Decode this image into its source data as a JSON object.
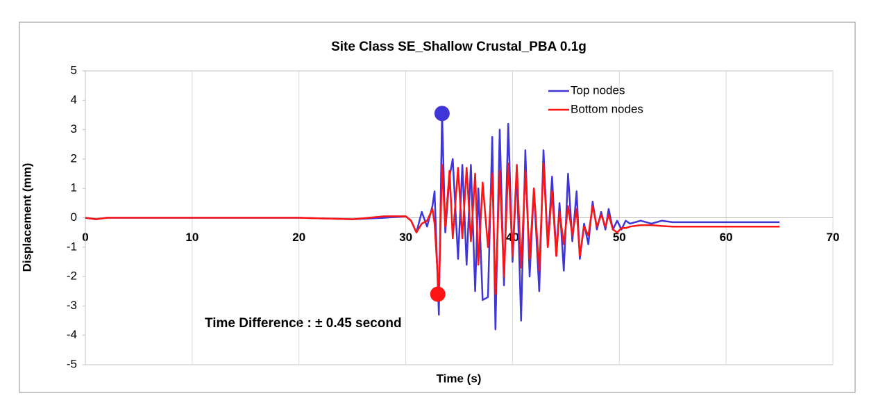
{
  "chart_data": {
    "type": "line",
    "title": "Site Class SE_Shallow Crustal_PBA 0.1g",
    "xlabel": "Time (s)",
    "ylabel": "Displacement (mm)",
    "annotation": "Time Difference : ± 0.45 second",
    "x": [
      0,
      1,
      2,
      5,
      10,
      15,
      20,
      25,
      28,
      30,
      30.5,
      31,
      31.5,
      32,
      32.5,
      32.7,
      33.1,
      33.4,
      33.7,
      34.1,
      34.4,
      34.9,
      35.3,
      35.7,
      36.1,
      36.5,
      36.8,
      37.2,
      37.7,
      38.1,
      38.4,
      38.8,
      39.2,
      39.6,
      40.0,
      40.4,
      40.8,
      41.2,
      41.6,
      42.0,
      42.5,
      42.9,
      43.3,
      43.7,
      44.1,
      44.4,
      44.8,
      45.2,
      45.6,
      46.0,
      46.3,
      46.7,
      47.1,
      47.5,
      47.9,
      48.3,
      48.7,
      49.0,
      49.4,
      49.8,
      50.2,
      50.6,
      51,
      52,
      53,
      54,
      55,
      57,
      60,
      65
    ],
    "series": [
      {
        "name": "Top nodes",
        "color": "#3f36d8",
        "values": [
          0,
          -0.05,
          0,
          0,
          0,
          0,
          0,
          -0.05,
          0,
          0.05,
          -0.1,
          -0.5,
          0.2,
          -0.3,
          0.4,
          0.9,
          -3.3,
          3.55,
          -0.5,
          1.4,
          2.0,
          -1.4,
          1.8,
          -1.6,
          1.8,
          -2.5,
          1.0,
          -2.8,
          -2.7,
          2.75,
          -3.8,
          3.0,
          -2.3,
          3.2,
          -1.5,
          1.6,
          -3.5,
          2.3,
          -2.0,
          1.0,
          -2.5,
          2.3,
          -1.0,
          1.4,
          -1.3,
          0.5,
          -1.8,
          1.5,
          -0.8,
          0.9,
          -1.4,
          -0.2,
          -0.9,
          0.55,
          -0.4,
          0.2,
          -0.4,
          0.3,
          -0.4,
          -0.1,
          -0.4,
          -0.1,
          -0.2,
          -0.1,
          -0.2,
          -0.1,
          -0.15,
          -0.15,
          -0.15,
          -0.15
        ]
      },
      {
        "name": "Bottom nodes",
        "color": "#ff1414",
        "values": [
          0,
          -0.05,
          0,
          0,
          0,
          0,
          0,
          -0.05,
          0.05,
          0.05,
          -0.1,
          -0.5,
          -0.2,
          -0.1,
          0.3,
          -0.2,
          -2.6,
          1.8,
          -0.3,
          1.6,
          -0.7,
          1.7,
          -0.7,
          1.7,
          -0.8,
          1.5,
          -1.6,
          1.2,
          -1.0,
          1.5,
          -2.6,
          1.6,
          -2.0,
          1.85,
          -1.3,
          1.8,
          -1.7,
          1.6,
          -1.4,
          1.0,
          -1.8,
          1.85,
          -1.0,
          0.9,
          -1.3,
          0.2,
          -0.9,
          0.4,
          -0.6,
          0.3,
          -1.3,
          -0.3,
          -0.6,
          0.4,
          -0.3,
          0.1,
          -0.3,
          0.1,
          -0.4,
          -0.5,
          -0.35,
          -0.35,
          -0.3,
          -0.25,
          -0.25,
          -0.28,
          -0.3,
          -0.3,
          -0.3,
          -0.3
        ]
      }
    ],
    "markers": [
      {
        "x": 33.4,
        "y": 3.55,
        "color": "#3f36d8"
      },
      {
        "x": 33.0,
        "y": -2.6,
        "color": "#ff1414"
      }
    ],
    "xlim": [
      0,
      70
    ],
    "xticks": [
      0,
      10,
      20,
      30,
      40,
      50,
      60,
      70
    ],
    "ylim": [
      -5,
      5
    ],
    "yticks": [
      -5,
      -4,
      -3,
      -2,
      -1,
      0,
      1,
      2,
      3,
      4,
      5
    ],
    "grid": "x"
  }
}
